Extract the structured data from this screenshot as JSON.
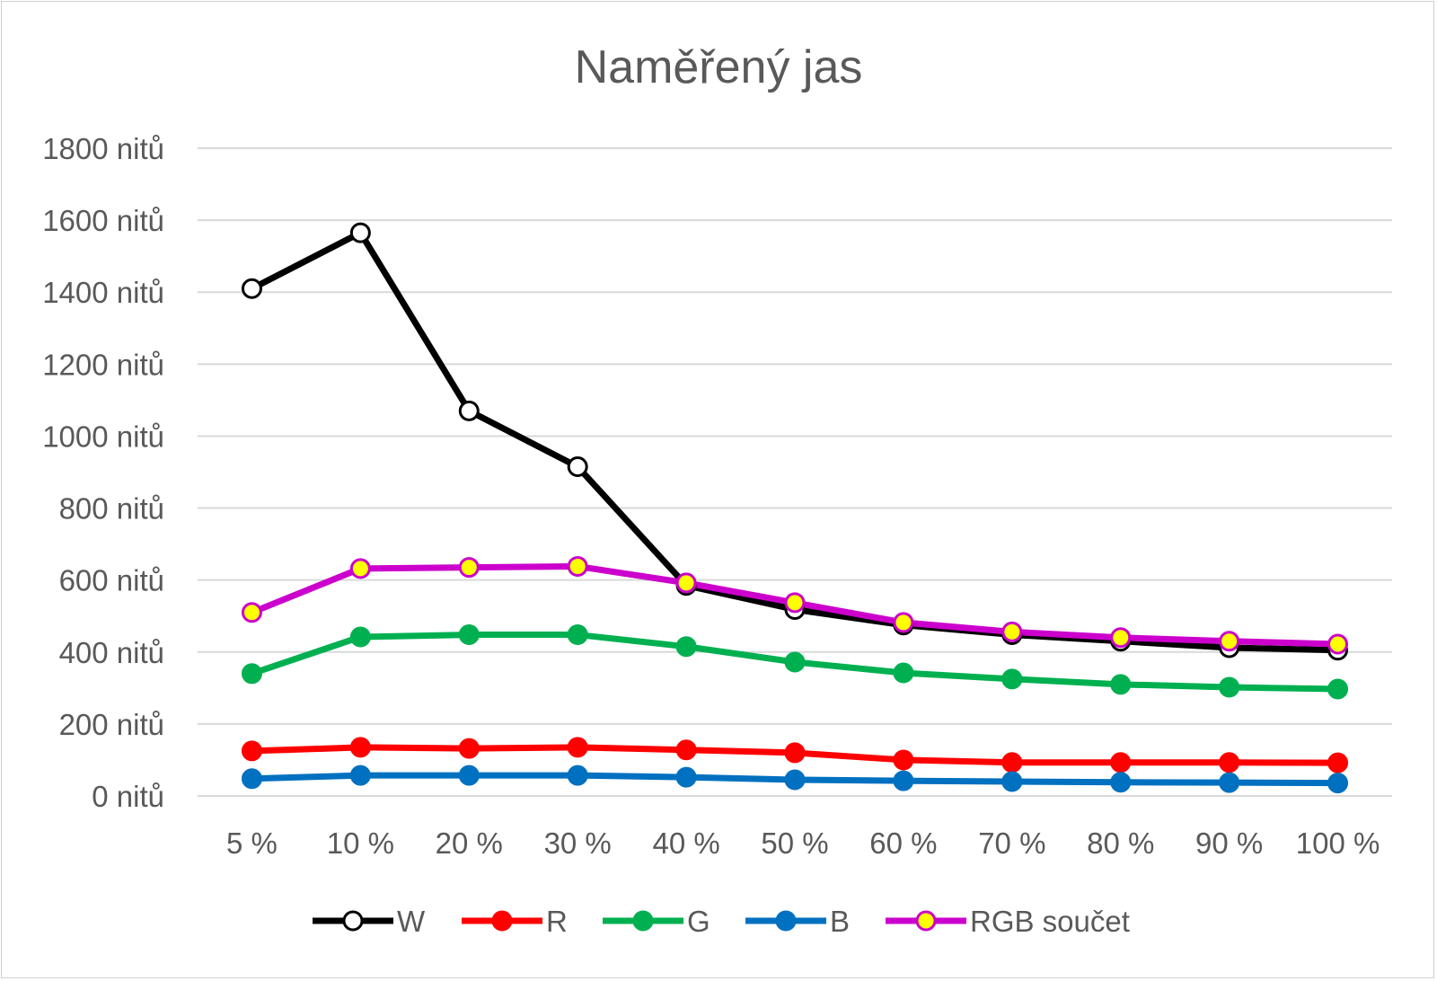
{
  "chart_data": {
    "type": "line",
    "title": "Naměřený jas",
    "xlabel": "",
    "ylabel": "",
    "categories": [
      "5 %",
      "10 %",
      "20 %",
      "30 %",
      "40 %",
      "50 %",
      "60 %",
      "70 %",
      "80 %",
      "90 %",
      "100 %"
    ],
    "ylim": [
      0,
      1800
    ],
    "yticks": [
      0,
      200,
      400,
      600,
      800,
      1000,
      1200,
      1400,
      1600,
      1800
    ],
    "ytick_labels": [
      "0 nitů",
      "200 nitů",
      "400 nitů",
      "600 nitů",
      "800 nitů",
      "1000 nitů",
      "1200 nitů",
      "1400 nitů",
      "1600 nitů",
      "1800 nitů"
    ],
    "grid": true,
    "legend_position": "bottom",
    "series": [
      {
        "name": "W",
        "color": "#000000",
        "marker_fill": "#ffffff",
        "marker_stroke": "#000000",
        "values": [
          1410,
          1565,
          1070,
          915,
          585,
          518,
          475,
          448,
          430,
          412,
          405
        ]
      },
      {
        "name": "R",
        "color": "#ff0000",
        "marker_fill": "#ff0000",
        "marker_stroke": "#ff0000",
        "values": [
          125,
          135,
          132,
          135,
          128,
          120,
          100,
          93,
          93,
          93,
          92
        ]
      },
      {
        "name": "G",
        "color": "#00b050",
        "marker_fill": "#00b050",
        "marker_stroke": "#00b050",
        "values": [
          340,
          442,
          448,
          448,
          415,
          372,
          342,
          325,
          310,
          302,
          297
        ]
      },
      {
        "name": "B",
        "color": "#0070c0",
        "marker_fill": "#0070c0",
        "marker_stroke": "#0070c0",
        "values": [
          48,
          57,
          57,
          57,
          52,
          45,
          42,
          40,
          38,
          37,
          36
        ]
      },
      {
        "name": "RGB součet",
        "color": "#cc00cc",
        "marker_fill": "#ffff00",
        "marker_stroke": "#cc00cc",
        "values": [
          510,
          632,
          635,
          638,
          592,
          537,
          482,
          456,
          440,
          430,
          422
        ]
      }
    ]
  }
}
